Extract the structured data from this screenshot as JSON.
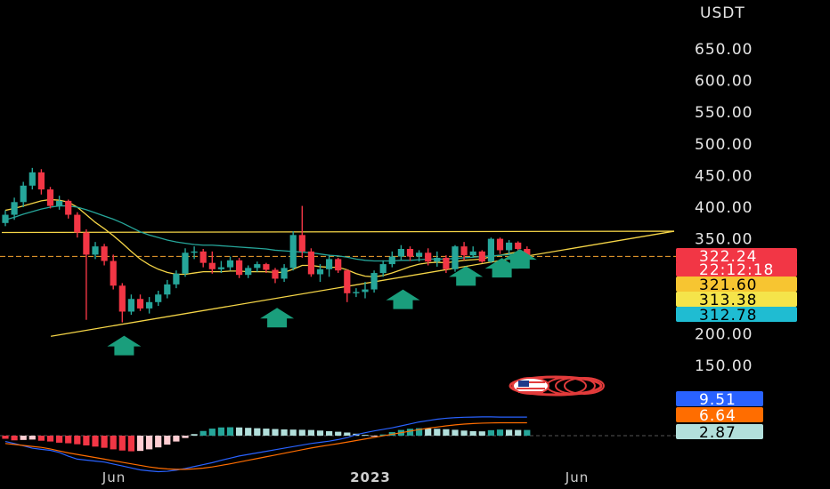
{
  "chart_data": {
    "type": "candlestick",
    "currency_label": "USDT",
    "price_axis": {
      "ticks": [
        "650.00",
        "600.00",
        "550.00",
        "500.00",
        "450.00",
        "400.00",
        "350.00",
        "200.00",
        "150.00"
      ],
      "tick_values": [
        650,
        600,
        550,
        500,
        450,
        400,
        350,
        200,
        150
      ]
    },
    "time_axis": {
      "labels": [
        "Jun",
        "2023",
        "Jun"
      ]
    },
    "badges": [
      {
        "text": "322.24",
        "bg": "#f23645",
        "fg": "#ffffff"
      },
      {
        "text": "22:12:18",
        "bg": "#f23645",
        "fg": "#ffffff"
      },
      {
        "text": "321.60",
        "bg": "#f7c531",
        "fg": "#000000"
      },
      {
        "text": "313.38",
        "bg": "#f5e44a",
        "fg": "#000000"
      },
      {
        "text": "312.78",
        "bg": "#1fbcd2",
        "fg": "#000000"
      }
    ],
    "indicator_badges": [
      {
        "text": "9.51",
        "bg": "#2962ff",
        "fg": "#ffffff"
      },
      {
        "text": "6.64",
        "bg": "#ff6d00",
        "fg": "#ffffff"
      },
      {
        "text": "2.87",
        "bg": "#b2dfdb",
        "fg": "#000000"
      }
    ],
    "current_price": 322.24,
    "candles": [
      {
        "o": 375,
        "h": 395,
        "l": 370,
        "c": 388
      },
      {
        "o": 388,
        "h": 415,
        "l": 380,
        "c": 408
      },
      {
        "o": 408,
        "h": 440,
        "l": 400,
        "c": 434
      },
      {
        "o": 434,
        "h": 462,
        "l": 428,
        "c": 455
      },
      {
        "o": 455,
        "h": 460,
        "l": 420,
        "c": 428
      },
      {
        "o": 428,
        "h": 432,
        "l": 398,
        "c": 402
      },
      {
        "o": 402,
        "h": 418,
        "l": 396,
        "c": 410
      },
      {
        "o": 410,
        "h": 412,
        "l": 382,
        "c": 388
      },
      {
        "o": 388,
        "h": 392,
        "l": 352,
        "c": 360
      },
      {
        "o": 360,
        "h": 365,
        "l": 222,
        "c": 325
      },
      {
        "o": 325,
        "h": 345,
        "l": 318,
        "c": 338
      },
      {
        "o": 338,
        "h": 342,
        "l": 308,
        "c": 315
      },
      {
        "o": 315,
        "h": 325,
        "l": 270,
        "c": 276
      },
      {
        "o": 276,
        "h": 280,
        "l": 218,
        "c": 235
      },
      {
        "o": 235,
        "h": 262,
        "l": 230,
        "c": 255
      },
      {
        "o": 255,
        "h": 262,
        "l": 236,
        "c": 240
      },
      {
        "o": 240,
        "h": 258,
        "l": 232,
        "c": 250
      },
      {
        "o": 250,
        "h": 268,
        "l": 244,
        "c": 262
      },
      {
        "o": 262,
        "h": 285,
        "l": 256,
        "c": 278
      },
      {
        "o": 278,
        "h": 300,
        "l": 272,
        "c": 295
      },
      {
        "o": 295,
        "h": 335,
        "l": 290,
        "c": 328
      },
      {
        "o": 328,
        "h": 338,
        "l": 318,
        "c": 330
      },
      {
        "o": 330,
        "h": 334,
        "l": 305,
        "c": 312
      },
      {
        "o": 312,
        "h": 330,
        "l": 295,
        "c": 302
      },
      {
        "o": 302,
        "h": 315,
        "l": 296,
        "c": 305
      },
      {
        "o": 305,
        "h": 322,
        "l": 300,
        "c": 316
      },
      {
        "o": 316,
        "h": 320,
        "l": 288,
        "c": 293
      },
      {
        "o": 293,
        "h": 308,
        "l": 288,
        "c": 304
      },
      {
        "o": 304,
        "h": 314,
        "l": 298,
        "c": 310
      },
      {
        "o": 310,
        "h": 312,
        "l": 296,
        "c": 301
      },
      {
        "o": 301,
        "h": 304,
        "l": 280,
        "c": 287
      },
      {
        "o": 287,
        "h": 310,
        "l": 282,
        "c": 304
      },
      {
        "o": 304,
        "h": 362,
        "l": 300,
        "c": 356
      },
      {
        "o": 356,
        "h": 402,
        "l": 320,
        "c": 330
      },
      {
        "o": 330,
        "h": 335,
        "l": 290,
        "c": 294
      },
      {
        "o": 294,
        "h": 310,
        "l": 282,
        "c": 302
      },
      {
        "o": 302,
        "h": 325,
        "l": 290,
        "c": 318
      },
      {
        "o": 318,
        "h": 320,
        "l": 296,
        "c": 300
      },
      {
        "o": 300,
        "h": 302,
        "l": 250,
        "c": 264
      },
      {
        "o": 264,
        "h": 272,
        "l": 258,
        "c": 266
      },
      {
        "o": 266,
        "h": 282,
        "l": 256,
        "c": 270
      },
      {
        "o": 270,
        "h": 300,
        "l": 265,
        "c": 296
      },
      {
        "o": 296,
        "h": 316,
        "l": 290,
        "c": 310
      },
      {
        "o": 310,
        "h": 330,
        "l": 305,
        "c": 322
      },
      {
        "o": 322,
        "h": 340,
        "l": 316,
        "c": 334
      },
      {
        "o": 334,
        "h": 338,
        "l": 315,
        "c": 322
      },
      {
        "o": 322,
        "h": 332,
        "l": 314,
        "c": 328
      },
      {
        "o": 328,
        "h": 335,
        "l": 308,
        "c": 314
      },
      {
        "o": 314,
        "h": 330,
        "l": 306,
        "c": 320
      },
      {
        "o": 320,
        "h": 324,
        "l": 296,
        "c": 302
      },
      {
        "o": 302,
        "h": 340,
        "l": 298,
        "c": 338
      },
      {
        "o": 338,
        "h": 345,
        "l": 316,
        "c": 324
      },
      {
        "o": 324,
        "h": 338,
        "l": 320,
        "c": 330
      },
      {
        "o": 330,
        "h": 332,
        "l": 312,
        "c": 314
      },
      {
        "o": 314,
        "h": 352,
        "l": 312,
        "c": 350
      },
      {
        "o": 350,
        "h": 352,
        "l": 326,
        "c": 332
      },
      {
        "o": 332,
        "h": 348,
        "l": 324,
        "c": 344
      },
      {
        "o": 344,
        "h": 346,
        "l": 330,
        "c": 334
      },
      {
        "o": 334,
        "h": 338,
        "l": 318,
        "c": 322
      }
    ],
    "ma_lines": [
      {
        "color": "#f5d547",
        "values": [
          395,
          398,
          402,
          406,
          410,
          412,
          411,
          408,
          400,
          388,
          376,
          366,
          355,
          343,
          330,
          318,
          309,
          302,
          297,
          294,
          294,
          296,
          298,
          298,
          298,
          299,
          299,
          298,
          298,
          298,
          297,
          297,
          302,
          308,
          308,
          306,
          305,
          305,
          301,
          295,
          291,
          290,
          292,
          296,
          301,
          306,
          310,
          312,
          313,
          312,
          314,
          316,
          317,
          318,
          322,
          324,
          327,
          329,
          330
        ]
      },
      {
        "color": "#26a69a",
        "values": [
          380,
          384,
          389,
          393,
          397,
          400,
          402,
          402,
          400,
          396,
          391,
          386,
          381,
          375,
          368,
          361,
          356,
          352,
          348,
          345,
          343,
          341,
          340,
          340,
          339,
          338,
          337,
          336,
          335,
          334,
          332,
          331,
          330,
          329,
          328,
          326,
          324,
          323,
          321,
          318,
          316,
          315,
          315,
          315,
          316,
          316,
          317,
          318,
          318,
          318,
          319,
          320,
          321,
          322,
          323,
          324,
          325,
          326,
          327
        ]
      }
    ],
    "trendlines": [
      {
        "points": [
          [
            0,
            360
          ],
          [
            62,
            362
          ]
        ],
        "color": "#f5d547"
      },
      {
        "points": [
          [
            1,
            196
          ],
          [
            62,
            362
          ]
        ],
        "color": "#f5d547"
      }
    ],
    "up_arrows": [
      {
        "index": 4,
        "price": 180
      },
      {
        "index": 21,
        "price": 224
      },
      {
        "index": 35,
        "price": 253
      },
      {
        "index": 42,
        "price": 290
      },
      {
        "index": 46,
        "price": 303
      },
      {
        "index": 48,
        "price": 317
      }
    ],
    "macd": {
      "histogram": [
        -1.6,
        -2.4,
        -2.2,
        -2.0,
        -2.6,
        -3.0,
        -3.6,
        -3.9,
        -4.4,
        -5.0,
        -5.6,
        -6.2,
        -7.0,
        -7.6,
        -8.0,
        -7.8,
        -7.0,
        -6.0,
        -4.6,
        -3.0,
        -1.2,
        0.8,
        2.4,
        3.6,
        4.2,
        4.3,
        4.2,
        4.0,
        3.8,
        3.6,
        3.4,
        3.2,
        3.1,
        3.0,
        2.9,
        2.6,
        2.3,
        2.0,
        1.6,
        1.0,
        0.4,
        -0.3,
        0.6,
        1.8,
        2.9,
        3.5,
        3.8,
        3.7,
        3.5,
        3.3,
        3.0,
        2.6,
        2.3,
        2.2,
        2.8,
        3.1,
        3.0,
        2.9,
        2.9
      ],
      "macd_line": [
        -3.0,
        -4.0,
        -5.2,
        -6.4,
        -7.0,
        -7.5,
        -8.6,
        -10.5,
        -12.0,
        -12.5,
        -13.0,
        -13.5,
        -14.5,
        -15.5,
        -16.5,
        -17.5,
        -18.0,
        -18.4,
        -18.2,
        -17.6,
        -16.8,
        -15.8,
        -14.8,
        -13.8,
        -12.6,
        -11.5,
        -10.4,
        -9.6,
        -8.8,
        -8.0,
        -7.2,
        -6.4,
        -5.6,
        -4.8,
        -4.0,
        -3.4,
        -2.8,
        -2.0,
        -1.0,
        0.5,
        1.5,
        2.4,
        3.2,
        4.0,
        5.0,
        6.0,
        7.0,
        7.7,
        8.4,
        8.9,
        9.2,
        9.4,
        9.5,
        9.6,
        9.6,
        9.5,
        9.5,
        9.5,
        9.5
      ],
      "signal_line": [
        -4.0,
        -4.5,
        -5.0,
        -5.5,
        -6.0,
        -6.8,
        -7.8,
        -8.8,
        -9.6,
        -10.4,
        -11.2,
        -12.0,
        -12.8,
        -13.6,
        -14.4,
        -15.2,
        -16.0,
        -16.6,
        -17.0,
        -17.2,
        -17.2,
        -17.0,
        -16.6,
        -16.0,
        -15.2,
        -14.4,
        -13.5,
        -12.6,
        -11.7,
        -10.8,
        -9.9,
        -9.0,
        -8.1,
        -7.2,
        -6.3,
        -5.5,
        -4.8,
        -4.1,
        -3.3,
        -2.5,
        -1.7,
        -0.9,
        -0.1,
        0.7,
        1.5,
        2.3,
        3.1,
        3.8,
        4.4,
        5.0,
        5.5,
        5.9,
        6.2,
        6.4,
        6.5,
        6.6,
        6.6,
        6.6,
        6.6
      ]
    },
    "current_bar_index": 58
  }
}
